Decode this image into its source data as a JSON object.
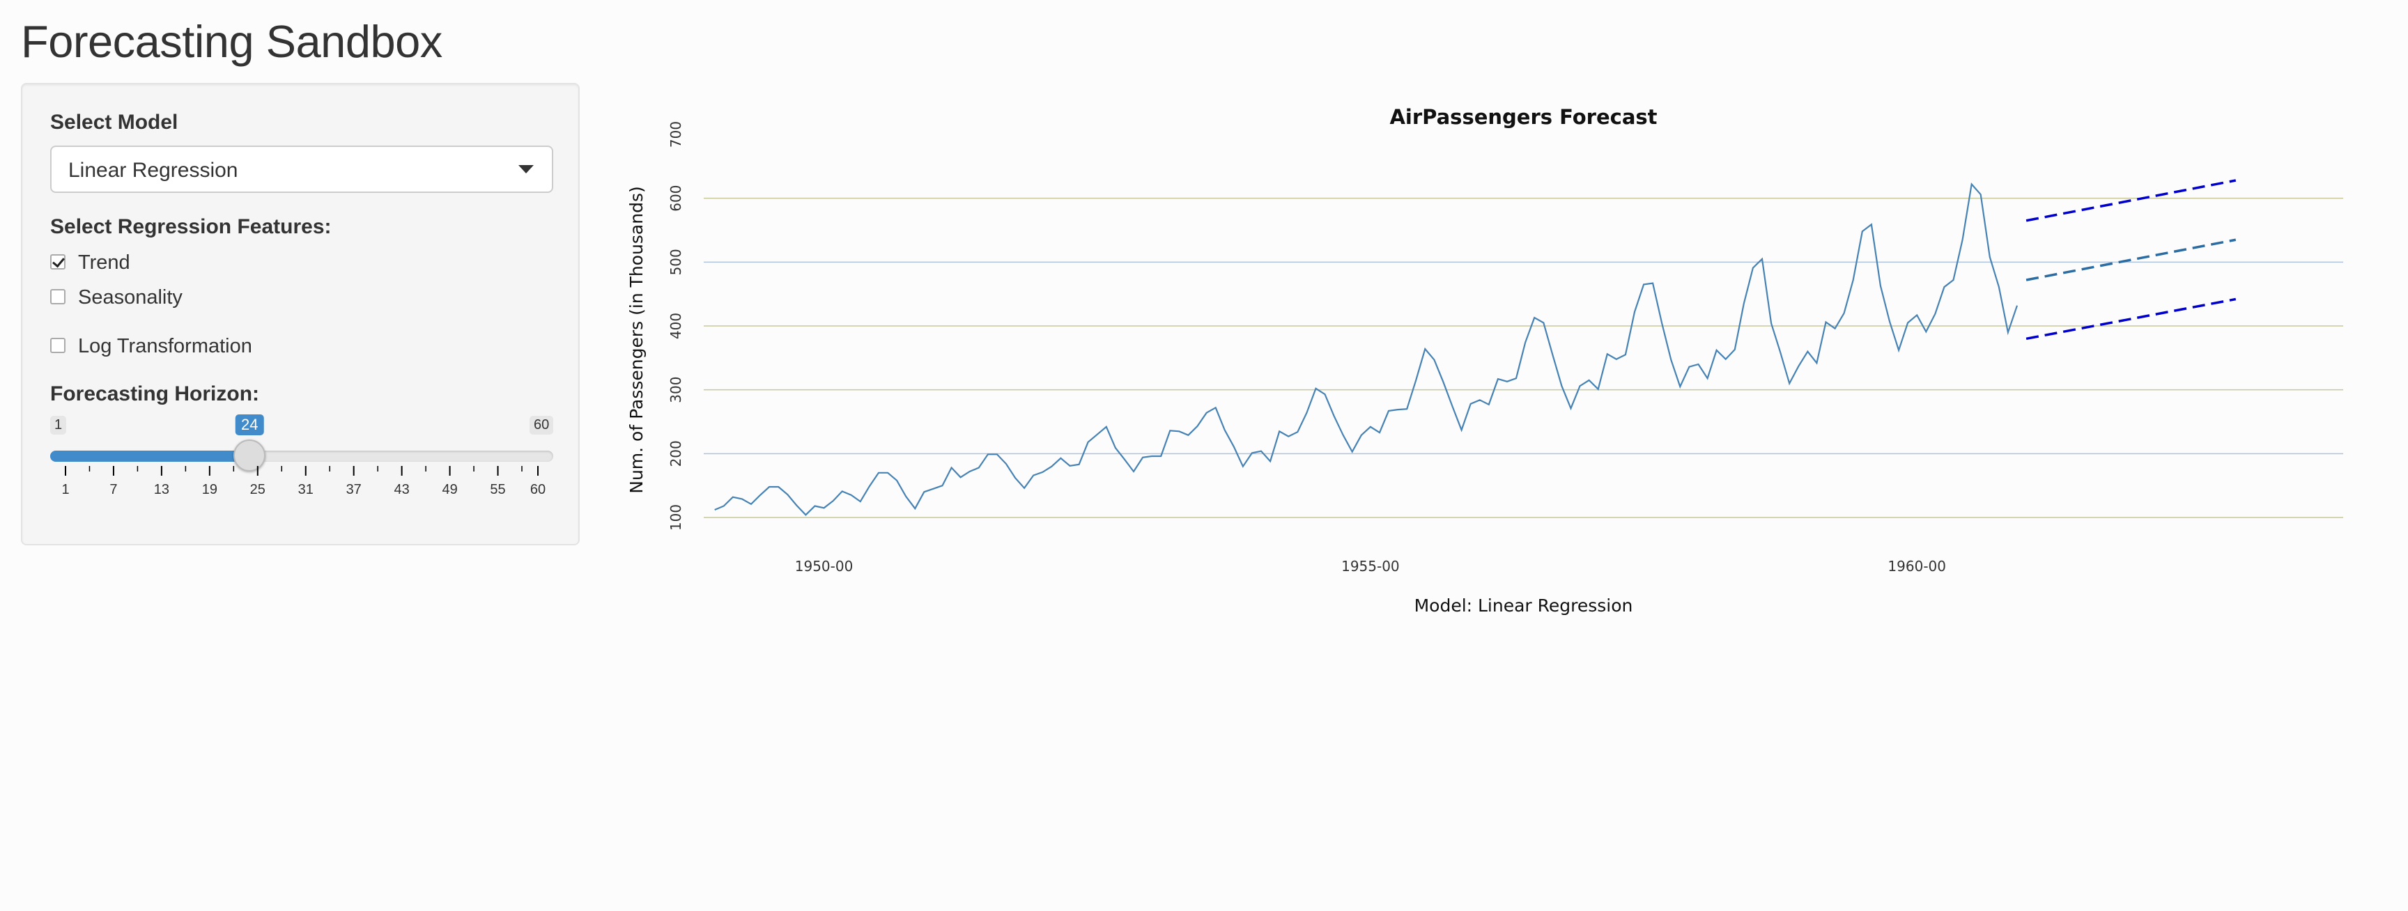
{
  "page": {
    "title": "Forecasting Sandbox"
  },
  "sidebar": {
    "model_label": "Select Model",
    "model_value": "Linear Regression",
    "features_label": "Select Regression Features:",
    "features": [
      {
        "label": "Trend",
        "checked": true
      },
      {
        "label": "Seasonality",
        "checked": false
      }
    ],
    "log_transform": {
      "label": "Log Transformation",
      "checked": false
    },
    "horizon": {
      "label": "Forecasting Horizon:",
      "min": 1,
      "max": 60,
      "value": 24,
      "min_text": "1",
      "max_text": "60",
      "value_text": "24",
      "tick_labels": [
        "1",
        "7",
        "13",
        "19",
        "25",
        "31",
        "37",
        "43",
        "49",
        "55",
        "60"
      ]
    }
  },
  "colors": {
    "accent": "#428bca",
    "series_line": "#4682b4",
    "forecast_mean": "#2b6ca3",
    "forecast_bounds": "#0000cd",
    "grid_olive": "#c8c89a",
    "grid_blue": "#b0c4de"
  },
  "chart_data": {
    "type": "line",
    "title": "AirPassengers Forecast",
    "xlabel": "Model: Linear Regression",
    "ylabel": "Num. of Passengers (in Thousands)",
    "xlim": [
      1948.9,
      1963.9
    ],
    "ylim": [
      88,
      712
    ],
    "x_ticks": [
      1950,
      1955,
      1960
    ],
    "x_tick_labels": [
      "1950-00",
      "1955-00",
      "1960-00"
    ],
    "y_ticks": [
      100,
      200,
      300,
      400,
      500,
      600,
      700
    ],
    "y_tick_labels": [
      "100",
      "200",
      "300",
      "400",
      "500",
      "600",
      "700"
    ],
    "grid": true,
    "series": [
      {
        "start": 1949.0,
        "step": 0.0833333,
        "values": [
          112,
          118,
          132,
          129,
          121,
          135,
          148,
          148,
          136,
          119,
          104,
          118,
          115,
          126,
          141,
          135,
          125,
          149,
          170,
          170,
          158,
          133,
          114,
          140,
          145,
          150,
          178,
          163,
          172,
          178,
          199,
          199,
          184,
          162,
          146,
          166,
          171,
          180,
          193,
          181,
          183,
          218,
          230,
          242,
          209,
          191,
          172,
          194,
          196,
          196,
          236,
          235,
          229,
          243,
          264,
          272,
          237,
          211,
          180,
          201,
          204,
          188,
          235,
          227,
          234,
          264,
          302,
          293,
          259,
          229,
          203,
          229,
          242,
          233,
          267,
          269,
          270,
          315,
          364,
          347,
          312,
          274,
          237,
          278,
          284,
          277,
          317,
          313,
          318,
          374,
          413,
          405,
          355,
          306,
          271,
          306,
          315,
          301,
          356,
          348,
          355,
          422,
          465,
          467,
          404,
          347,
          305,
          336,
          340,
          318,
          362,
          348,
          363,
          435,
          491,
          505,
          404,
          359,
          310,
          337,
          360,
          342,
          406,
          396,
          420,
          472,
          548,
          559,
          463,
          407,
          362,
          405,
          417,
          391,
          419,
          461,
          472,
          535,
          622,
          606,
          508,
          461,
          390,
          432
        ]
      },
      {
        "name": "",
        "style": "dashed",
        "x": [
          1961.0,
          1962.917
        ],
        "upper": [
          565,
          628
        ],
        "mean": [
          472,
          535
        ],
        "lower": [
          380,
          442
        ]
      }
    ]
  }
}
